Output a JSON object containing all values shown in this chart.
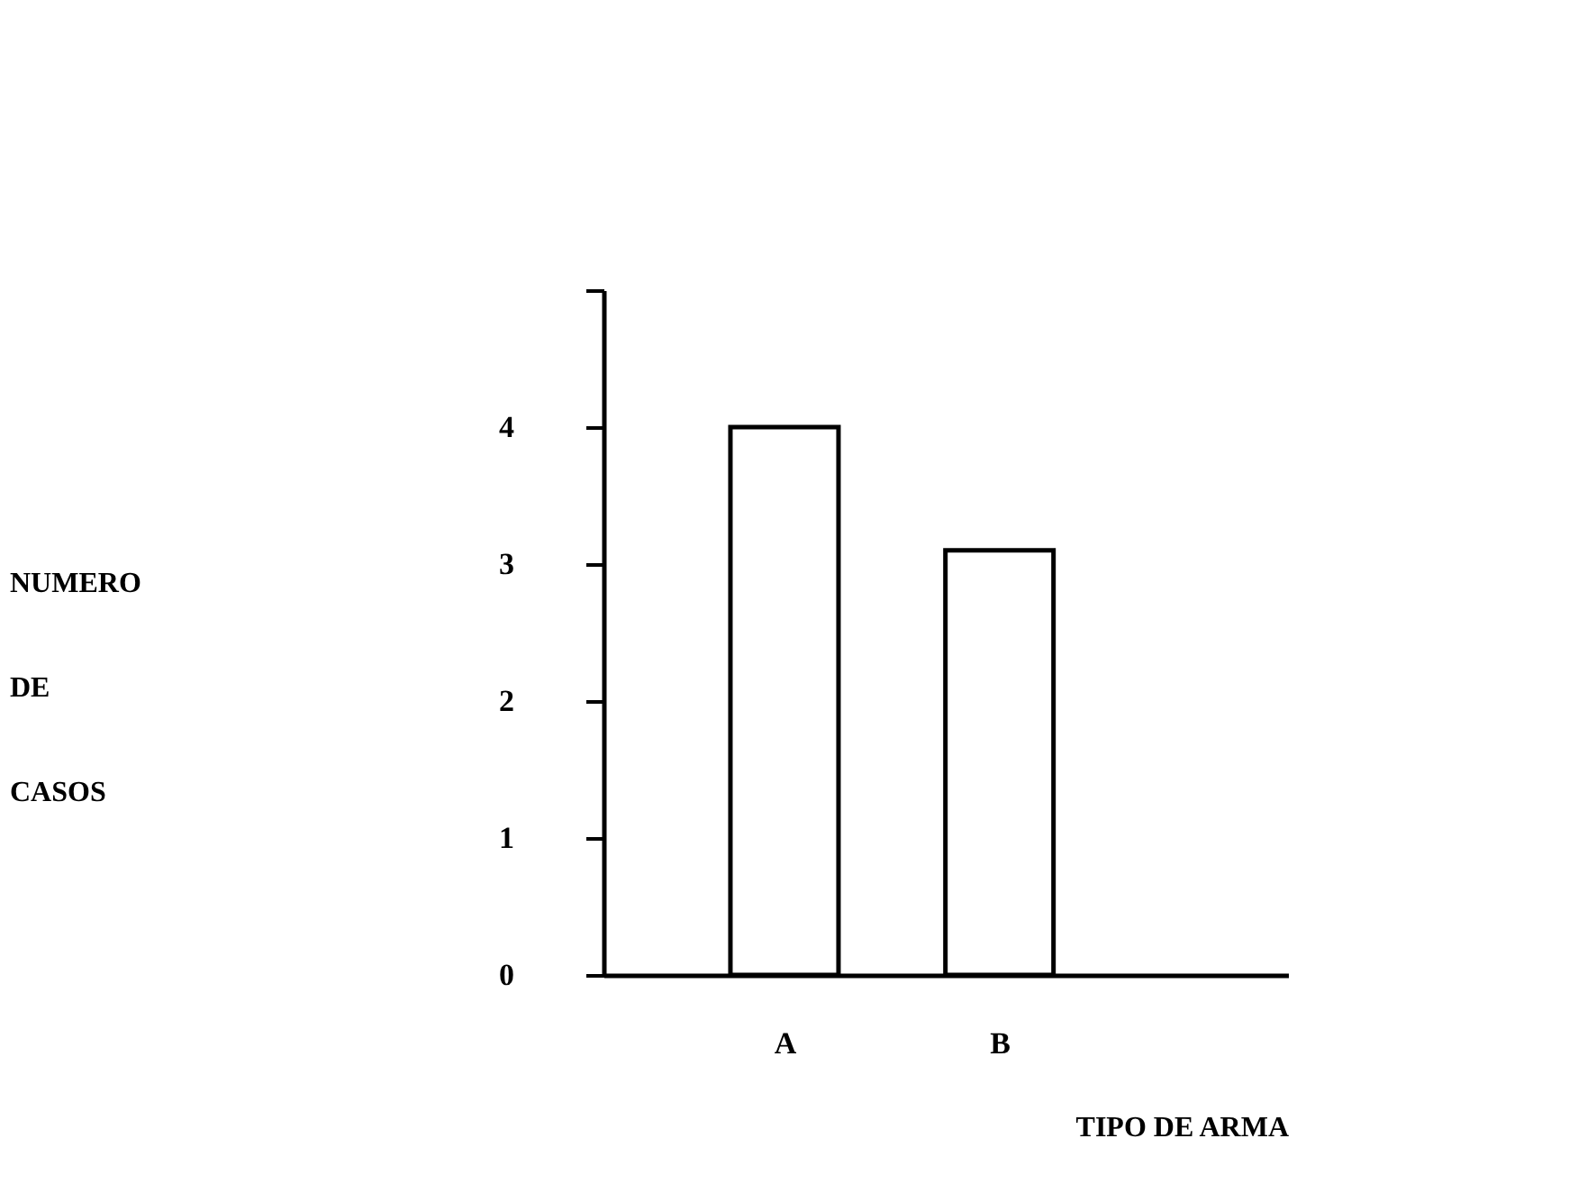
{
  "chart_data": {
    "type": "bar",
    "categories": [
      "A",
      "B"
    ],
    "values": [
      4,
      3.1
    ],
    "color": "#ffffff",
    "xlabel": "TIPO DE ARMA",
    "ylabel": "NUMERO DE CASOS",
    "ylim": [
      0,
      5
    ],
    "yticks": [
      0,
      1,
      2,
      3,
      4,
      {
        "value": 5,
        "label": null
      }
    ],
    "grid": false
  }
}
